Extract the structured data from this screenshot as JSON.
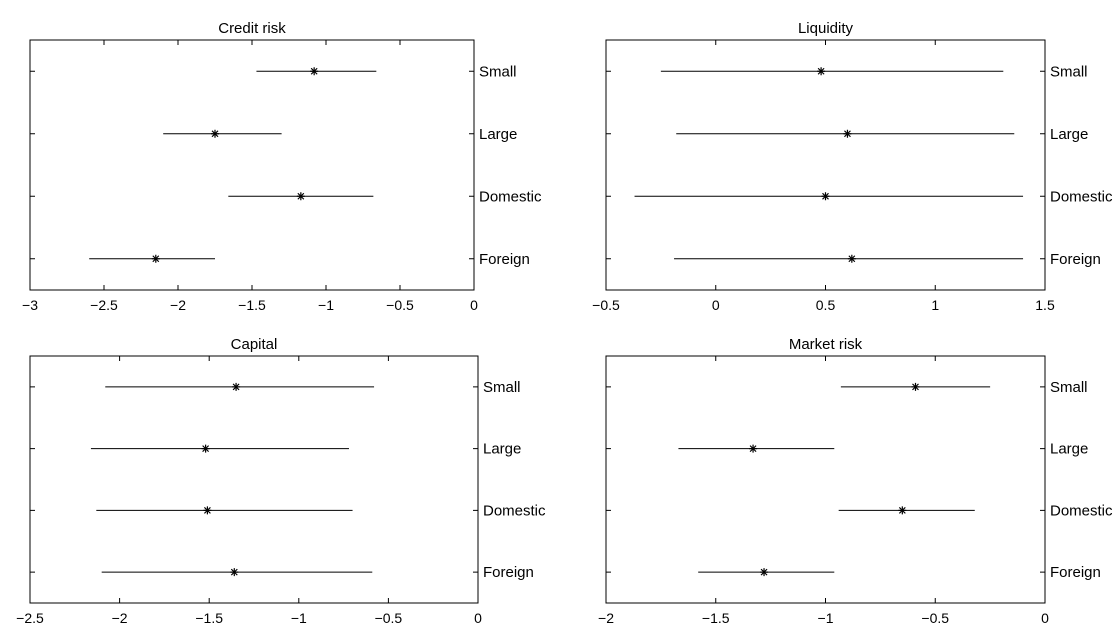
{
  "chart_data": [
    {
      "type": "interval",
      "title": "Credit risk",
      "categories": [
        "Small",
        "Large",
        "Domestic",
        "Foreign"
      ],
      "point": [
        -1.08,
        -1.75,
        -1.17,
        -2.15
      ],
      "lower": [
        -1.47,
        -2.1,
        -1.66,
        -2.6
      ],
      "upper": [
        -0.66,
        -1.3,
        -0.68,
        -1.75
      ],
      "xlim": [
        -3,
        0
      ],
      "xticks": [
        -3,
        -2.5,
        -2,
        -1.5,
        -1,
        -0.5,
        0
      ],
      "xtick_labels": [
        "−3",
        "−2.5",
        "−2",
        "−1.5",
        "−1",
        "−0.5",
        "0"
      ]
    },
    {
      "type": "interval",
      "title": "Liquidity",
      "categories": [
        "Small",
        "Large",
        "Domestic",
        "Foreign"
      ],
      "point": [
        0.48,
        0.6,
        0.5,
        0.62
      ],
      "lower": [
        -0.25,
        -0.18,
        -0.37,
        -0.19
      ],
      "upper": [
        1.31,
        1.36,
        1.4,
        1.4
      ],
      "xlim": [
        -0.5,
        1.5
      ],
      "xticks": [
        -0.5,
        0,
        0.5,
        1,
        1.5
      ],
      "xtick_labels": [
        "−0.5",
        "0",
        "0.5",
        "1",
        "1.5"
      ]
    },
    {
      "type": "interval",
      "title": "Capital",
      "categories": [
        "Small",
        "Large",
        "Domestic",
        "Foreign"
      ],
      "point": [
        -1.35,
        -1.52,
        -1.51,
        -1.36
      ],
      "lower": [
        -2.08,
        -2.16,
        -2.13,
        -2.1
      ],
      "upper": [
        -0.58,
        -0.72,
        -0.7,
        -0.59
      ],
      "xlim": [
        -2.5,
        0
      ],
      "xticks": [
        -2.5,
        -2,
        -1.5,
        -1,
        -0.5,
        0
      ],
      "xtick_labels": [
        "−2.5",
        "−2",
        "−1.5",
        "−1",
        "−0.5",
        "0"
      ]
    },
    {
      "type": "interval",
      "title": "Market risk",
      "categories": [
        "Small",
        "Large",
        "Domestic",
        "Foreign"
      ],
      "point": [
        -0.59,
        -1.33,
        -0.65,
        -1.28
      ],
      "lower": [
        -0.93,
        -1.67,
        -0.94,
        -1.58
      ],
      "upper": [
        -0.25,
        -0.96,
        -0.32,
        -0.96
      ],
      "xlim": [
        -2,
        0
      ],
      "xticks": [
        -2,
        -1.5,
        -1,
        -0.5,
        0
      ],
      "xtick_labels": [
        "−2",
        "−1.5",
        "−1",
        "−0.5",
        "0"
      ]
    }
  ]
}
